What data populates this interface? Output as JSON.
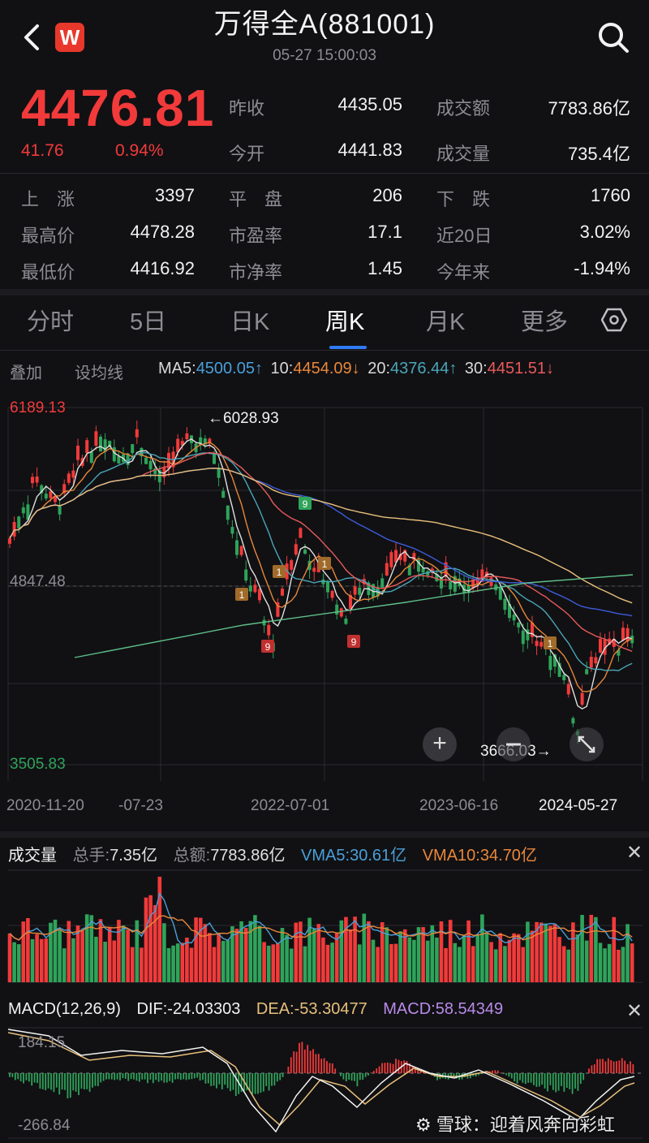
{
  "header": {
    "logo_letter": "W",
    "title": "万得全A(881001)",
    "datetime": "05-27 15:00:03"
  },
  "quote": {
    "price": "4476.81",
    "change": "41.76",
    "change_pct": "0.94%",
    "prev_close_label": "昨收",
    "prev_close": "4435.05",
    "open_label": "今开",
    "open": "4441.83",
    "amount_label": "成交额",
    "amount": "7783.86亿",
    "volume_label": "成交量",
    "volume": "735.4亿"
  },
  "stats": {
    "up_label": "上　涨",
    "up": "3397",
    "flat_label": "平　盘",
    "flat": "206",
    "down_label": "下　跌",
    "down": "1760",
    "high_label": "最高价",
    "high": "4478.28",
    "pe_label": "市盈率",
    "pe": "17.1",
    "d20_label": "近20日",
    "d20": "3.02%",
    "low_label": "最低价",
    "low": "4416.92",
    "pb_label": "市净率",
    "pb": "1.45",
    "ytd_label": "今年来",
    "ytd": "-1.94%"
  },
  "tabs": [
    "分时",
    "5日",
    "日K",
    "周K",
    "月K",
    "更多"
  ],
  "active_tab": "周K",
  "ma_bar": {
    "overlay": "叠加",
    "set_ma": "设均线",
    "ma5_label": "MA5:",
    "ma5": "4500.05↑",
    "ma10_label": "10:",
    "ma10": "4454.09↓",
    "ma20_label": "20:",
    "ma20": "4376.44↑",
    "ma30_label": "30:",
    "ma30": "4451.51↓"
  },
  "kchart": {
    "y_top": "6189.13",
    "y_mid": "4847.48",
    "y_bottom": "3505.83",
    "high_marker": "←6028.93",
    "low_marker": "3666.03→",
    "x_labels": [
      "2020-11-20",
      "-07-23",
      "2022-07-01",
      "2023-06-16",
      "2024-05-27"
    ],
    "td_marks": [
      "9",
      "1",
      "1",
      "9",
      "1",
      "9",
      "1"
    ]
  },
  "volume_panel": {
    "title": "成交量",
    "total_hands_label": "总手:",
    "total_hands": "7.35亿",
    "total_amount_label": "总额:",
    "total_amount": "7783.86亿",
    "vma5_label": "VMA5:",
    "vma5": "30.61亿",
    "vma10_label": "VMA10:",
    "vma10": "34.70亿"
  },
  "macd_panel": {
    "title": "MACD(12,26,9)",
    "dif_label": "DIF:",
    "dif": "-24.03303",
    "dea_label": "DEA:",
    "dea": "-53.30477",
    "macd_label": "MACD:",
    "macd": "58.54349",
    "y_top": "184.15",
    "y_bottom": "-266.84"
  },
  "watermark": "雪球：迎着风奔向彩虹",
  "colors": {
    "up": "#f23a3a",
    "down": "#2ea45a",
    "accent": "#2f7bf6"
  }
}
